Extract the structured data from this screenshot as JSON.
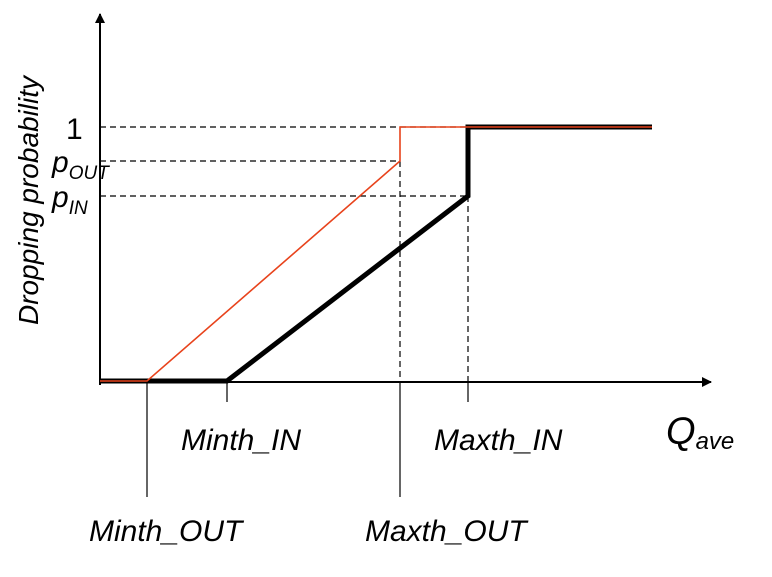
{
  "diagram": {
    "y_axis_label": "Dropping probability",
    "x_axis_label": {
      "main": "Q",
      "sub": "ave"
    },
    "y_ticks": {
      "one": "1",
      "p_out": {
        "main": "p",
        "sub": "OUT"
      },
      "p_in": {
        "main": "p",
        "sub": "IN"
      }
    },
    "x_ticks": {
      "minth_in": "Minth_IN",
      "maxth_in": "Maxth_IN",
      "minth_out": "Minth_OUT",
      "maxth_out": "Maxth_OUT"
    },
    "colors": {
      "in_curve": "#000000",
      "out_curve": "#e8431c",
      "axes": "#000000",
      "guides": "#000000"
    }
  }
}
